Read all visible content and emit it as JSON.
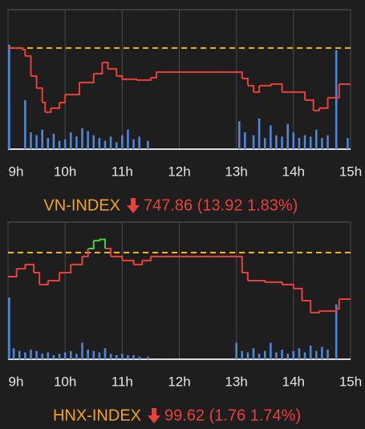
{
  "chart_data": [
    {
      "type": "line",
      "title": "VN-INDEX",
      "quote": "747.86 (13.92 1.83%)",
      "title_color": "#f0a526",
      "quote_color": "#e8413a",
      "reference": 761.78,
      "reference_color": "#e8b923",
      "xlim": [
        9,
        15
      ],
      "xticks": [
        {
          "value": 9,
          "label": "9h"
        },
        {
          "value": 10,
          "label": "10h"
        },
        {
          "value": 11,
          "label": "11h"
        },
        {
          "value": 12,
          "label": "12h"
        },
        {
          "value": 13,
          "label": "13h"
        },
        {
          "value": 14,
          "label": "14h"
        },
        {
          "value": 15,
          "label": "15h"
        }
      ],
      "ylim": [
        722.8,
        776.6
      ],
      "y2lim": [
        0,
        100
      ],
      "grid": true,
      "series": [
        {
          "type": "line",
          "color": "#e8413a",
          "up_color": "#3fd13f",
          "x": [
            9.0,
            9.25,
            9.3,
            9.4,
            9.5,
            9.6,
            9.65,
            9.75,
            9.9,
            10.0,
            10.25,
            10.5,
            10.65,
            10.75,
            10.9,
            11.0,
            11.25,
            11.5,
            11.6,
            12.0,
            13.0,
            13.1,
            13.2,
            13.3,
            13.4,
            13.6,
            13.8,
            14.0,
            14.2,
            14.35,
            14.45,
            14.6,
            14.75,
            14.8,
            15.0
          ],
          "values": [
            761.78,
            761.16,
            758.69,
            750.97,
            746.33,
            740.77,
            737.06,
            738.61,
            740.77,
            743.86,
            748.49,
            751.89,
            756.22,
            753.74,
            750.97,
            749.73,
            749.42,
            750.35,
            752.51,
            752.51,
            752.51,
            750.04,
            747.26,
            744.79,
            747.26,
            747.87,
            744.79,
            744.79,
            741.7,
            737.68,
            738.61,
            742.62,
            742.62,
            747.86,
            747.86
          ]
        },
        {
          "type": "bar",
          "axis": "y2",
          "color": "#4f86d6",
          "x": [
            9.02,
            9.3,
            9.4,
            9.5,
            9.6,
            9.7,
            9.8,
            9.9,
            10.0,
            10.1,
            10.2,
            10.3,
            10.4,
            10.5,
            10.6,
            10.7,
            10.8,
            10.9,
            11.0,
            11.1,
            11.2,
            11.3,
            11.45,
            13.05,
            13.15,
            13.3,
            13.4,
            13.5,
            13.6,
            13.7,
            13.8,
            13.9,
            14.0,
            14.1,
            14.2,
            14.3,
            14.4,
            14.5,
            14.6,
            14.75,
            14.95
          ],
          "values": [
            75,
            35,
            12,
            10,
            14,
            8,
            11,
            6,
            7,
            12,
            9,
            15,
            13,
            10,
            8,
            6,
            9,
            5,
            10,
            14,
            7,
            9,
            6,
            20,
            12,
            10,
            22,
            8,
            17,
            10,
            9,
            18,
            12,
            8,
            10,
            9,
            14,
            8,
            10,
            71,
            8
          ]
        }
      ]
    },
    {
      "type": "line",
      "title": "HNX-INDEX",
      "quote": "99.62 (1.76 1.74%)",
      "title_color": "#f0a526",
      "quote_color": "#e8413a",
      "reference": 101.38,
      "reference_color": "#e8b923",
      "xlim": [
        9,
        15
      ],
      "xticks": [
        {
          "value": 9,
          "label": "9h"
        },
        {
          "value": 10,
          "label": "10h"
        },
        {
          "value": 11,
          "label": "11h"
        },
        {
          "value": 12,
          "label": "12h"
        },
        {
          "value": 13,
          "label": "13h"
        },
        {
          "value": 14,
          "label": "14h"
        },
        {
          "value": 15,
          "label": "15h"
        }
      ],
      "ylim": [
        97.35,
        102.53
      ],
      "y2lim": [
        0,
        100
      ],
      "grid": true,
      "series": [
        {
          "type": "line",
          "color": "#e8413a",
          "up_color": "#3fd13f",
          "x": [
            9.0,
            9.15,
            9.3,
            9.45,
            9.55,
            9.7,
            9.9,
            10.1,
            10.3,
            10.4,
            10.5,
            10.6,
            10.7,
            10.8,
            11.0,
            11.2,
            11.35,
            11.5,
            12.0,
            13.0,
            13.1,
            13.2,
            13.5,
            13.8,
            14.0,
            14.15,
            14.3,
            14.45,
            14.75,
            14.8,
            15.0
          ],
          "values": [
            100.47,
            100.77,
            100.93,
            100.62,
            100.17,
            100.32,
            100.62,
            100.93,
            101.23,
            101.53,
            101.83,
            101.88,
            101.53,
            101.23,
            101.08,
            100.93,
            101.08,
            101.23,
            101.23,
            101.23,
            100.62,
            100.32,
            100.26,
            100.17,
            100.02,
            99.56,
            99.11,
            99.17,
            99.26,
            99.62,
            99.62
          ]
        },
        {
          "type": "bar",
          "axis": "y2",
          "color": "#4f86d6",
          "x": [
            9.02,
            9.1,
            9.2,
            9.3,
            9.4,
            9.5,
            9.6,
            9.7,
            9.8,
            9.9,
            10.0,
            10.1,
            10.2,
            10.3,
            10.4,
            10.5,
            10.6,
            10.7,
            10.8,
            10.9,
            11.0,
            11.1,
            11.2,
            11.3,
            11.45,
            13.0,
            13.1,
            13.2,
            13.3,
            13.4,
            13.5,
            13.6,
            13.7,
            13.8,
            13.9,
            14.0,
            14.1,
            14.2,
            14.3,
            14.4,
            14.5,
            14.6,
            14.75
          ],
          "values": [
            45,
            8,
            6,
            5,
            7,
            6,
            4,
            5,
            3,
            4,
            5,
            6,
            4,
            12,
            7,
            6,
            5,
            8,
            4,
            3,
            4,
            3,
            3,
            2,
            2,
            12,
            6,
            5,
            8,
            4,
            6,
            12,
            5,
            7,
            4,
            6,
            8,
            5,
            10,
            6,
            9,
            7,
            40
          ]
        }
      ]
    }
  ]
}
